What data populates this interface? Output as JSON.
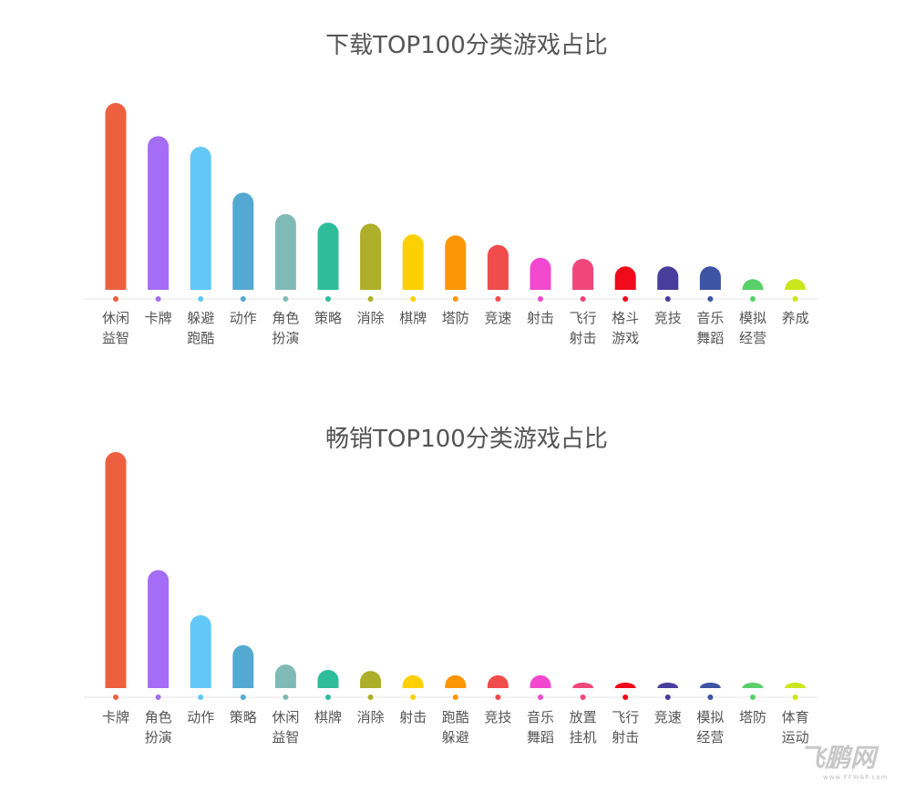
{
  "chart_data": [
    {
      "type": "bar",
      "title": "下载TOP100分类游戏占比",
      "categories": [
        "休闲益智",
        "卡牌",
        "躲避跑酷",
        "动作",
        "角色扮演",
        "策略",
        "消除",
        "棋牌",
        "塔防",
        "竞速",
        "射击",
        "飞行射击",
        "格斗游戏",
        "竞技",
        "音乐舞蹈",
        "模拟经营",
        "养成"
      ],
      "values": [
        17.5,
        14.4,
        13.4,
        9.1,
        7.1,
        6.3,
        6.2,
        5.2,
        5.1,
        4.2,
        3.0,
        2.9,
        2.2,
        2.2,
        2.2,
        1.0,
        1.0
      ],
      "colors": [
        "#ec6040",
        "#a56cf5",
        "#63c7f7",
        "#53a9d1",
        "#7fbab6",
        "#2ebd9b",
        "#adae29",
        "#fed001",
        "#fe9507",
        "#f04c4c",
        "#f248cf",
        "#f0467a",
        "#f10a1a",
        "#483c9c",
        "#3d53a4",
        "#59d069",
        "#cae61c"
      ],
      "ylim": [
        0,
        17.5
      ],
      "grid": false,
      "legend": false
    },
    {
      "type": "bar",
      "title": "畅销TOP100分类游戏占比",
      "categories": [
        "卡牌",
        "角色扮演",
        "动作",
        "策略",
        "休闲益智",
        "棋牌",
        "消除",
        "射击",
        "跑酷躲避",
        "竞技",
        "音乐舞蹈",
        "放置挂机",
        "飞行射击",
        "竞速",
        "模拟经营",
        "塔防",
        "体育运动"
      ],
      "values": [
        22.0,
        11.0,
        6.8,
        4.0,
        2.2,
        1.7,
        1.6,
        1.2,
        1.2,
        1.2,
        1.2,
        0.5,
        0.5,
        0.5,
        0.5,
        0.5,
        0.5
      ],
      "colors": [
        "#ec6040",
        "#a56cf5",
        "#63c7f7",
        "#53a9d1",
        "#7fbab6",
        "#2ebd9b",
        "#adae29",
        "#fed001",
        "#fe9507",
        "#f04c4c",
        "#f248cf",
        "#f0467a",
        "#f10a1a",
        "#483c9c",
        "#3d53a4",
        "#59d069",
        "#cae61c"
      ],
      "ylim": [
        0,
        22.0
      ],
      "grid": false,
      "legend": false
    }
  ],
  "watermark": {
    "text": "飞鹏网",
    "sub": "www.FFWAP.com"
  }
}
